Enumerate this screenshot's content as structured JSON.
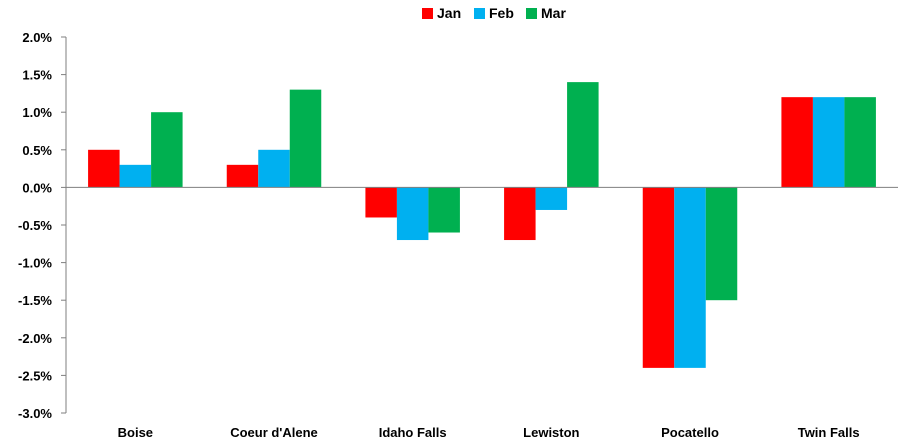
{
  "chart_data": {
    "type": "bar",
    "categories": [
      "Boise",
      "Coeur d'Alene",
      "Idaho Falls",
      "Lewiston",
      "Pocatello",
      "Twin Falls"
    ],
    "series": [
      {
        "name": "Jan",
        "color": "#ff0000",
        "values": [
          0.5,
          0.3,
          -0.4,
          -0.7,
          -2.4,
          1.2
        ]
      },
      {
        "name": "Feb",
        "color": "#00b0f0",
        "values": [
          0.3,
          0.5,
          -0.7,
          -0.3,
          -2.4,
          1.2
        ]
      },
      {
        "name": "Mar",
        "color": "#00b050",
        "values": [
          1.0,
          1.3,
          -0.6,
          1.4,
          -1.5,
          1.2
        ]
      }
    ],
    "ylim": [
      -3.0,
      2.0
    ],
    "yticks": [
      2.0,
      1.5,
      1.0,
      0.5,
      0.0,
      -0.5,
      -1.0,
      -1.5,
      -2.0,
      -2.5,
      -3.0
    ],
    "ytick_labels": [
      "2.0%",
      "1.5%",
      "1.0%",
      "0.5%",
      "0.0%",
      "-0.5%",
      "-1.0%",
      "-1.5%",
      "-2.0%",
      "-2.5%",
      "-3.0%"
    ],
    "y_unit": "%",
    "legend_position": "top-center",
    "grid": false,
    "title": "",
    "xlabel": "",
    "ylabel": ""
  }
}
